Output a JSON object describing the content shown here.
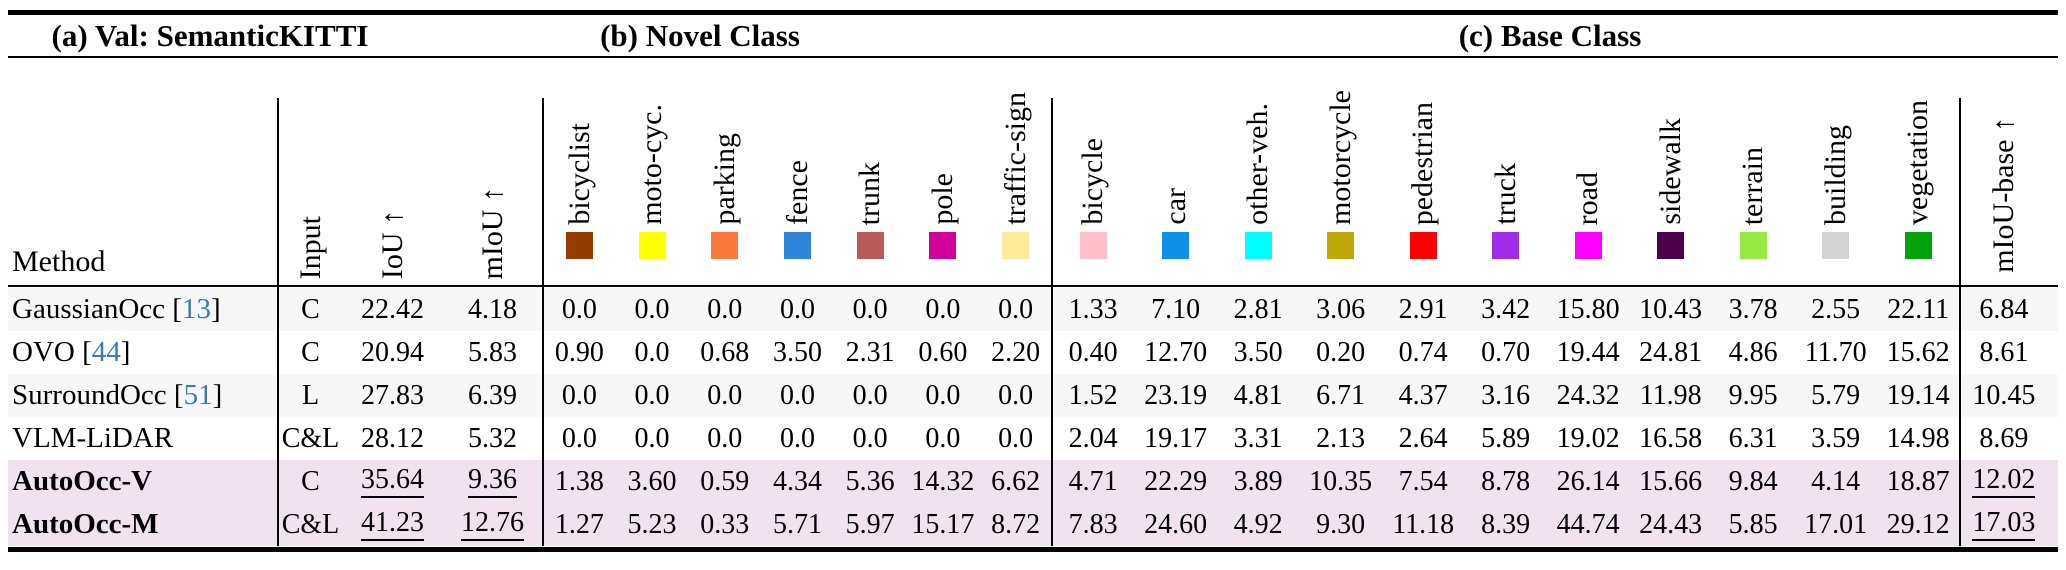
{
  "sections": {
    "a": "(a) Val: SemanticKITTI",
    "b": "(b) Novel Class",
    "c": "(c) Base Class"
  },
  "header": {
    "method": "Method",
    "input": "Input",
    "iou": "IoU ↑",
    "miou": "mIoU ↑",
    "miou_base": "mIoU-base ↑"
  },
  "classes": {
    "novel": [
      {
        "label": "bicyclist",
        "color": "#963C00"
      },
      {
        "label": "moto-cyc.",
        "color": "#FFFF00"
      },
      {
        "label": "parking",
        "color": "#FA7A3C"
      },
      {
        "label": "fence",
        "color": "#2F86D9"
      },
      {
        "label": "trunk",
        "color": "#B95A5B"
      },
      {
        "label": "pole",
        "color": "#D1009B"
      },
      {
        "label": "traffic-sign",
        "color": "#FFEC9C"
      }
    ],
    "base": [
      {
        "label": "bicycle",
        "color": "#FFC0CB"
      },
      {
        "label": "car",
        "color": "#0E90E6"
      },
      {
        "label": "other-veh.",
        "color": "#00FFFF"
      },
      {
        "label": "motorcycle",
        "color": "#C0A806"
      },
      {
        "label": "pedestrian",
        "color": "#FF0000"
      },
      {
        "label": "truck",
        "color": "#A02BE8"
      },
      {
        "label": "road",
        "color": "#FF00FF"
      },
      {
        "label": "sidewalk",
        "color": "#4B0049"
      },
      {
        "label": "terrain",
        "color": "#96E842"
      },
      {
        "label": "building",
        "color": "#D3D3D3"
      },
      {
        "label": "vegetation",
        "color": "#00A30A"
      }
    ]
  },
  "rows": [
    {
      "method": "GaussianOcc",
      "cite": "13",
      "bold": false,
      "bg": "#F7F7F7",
      "input": "C",
      "iou": "22.42",
      "miou": "4.18",
      "u_iou": false,
      "u_miou": false,
      "novel": [
        "0.0",
        "0.0",
        "0.0",
        "0.0",
        "0.0",
        "0.0",
        "0.0"
      ],
      "base": [
        "1.33",
        "7.10",
        "2.81",
        "3.06",
        "2.91",
        "3.42",
        "15.80",
        "10.43",
        "3.78",
        "2.55",
        "22.11"
      ],
      "miou_base": "6.84",
      "u_miou_base": false
    },
    {
      "method": "OVO",
      "cite": "44",
      "bold": false,
      "bg": "#FFFFFF",
      "input": "C",
      "iou": "20.94",
      "miou": "5.83",
      "u_iou": false,
      "u_miou": false,
      "novel": [
        "0.90",
        "0.0",
        "0.68",
        "3.50",
        "2.31",
        "0.60",
        "2.20"
      ],
      "base": [
        "0.40",
        "12.70",
        "3.50",
        "0.20",
        "0.74",
        "0.70",
        "19.44",
        "24.81",
        "4.86",
        "11.70",
        "15.62"
      ],
      "miou_base": "8.61",
      "u_miou_base": false
    },
    {
      "method": "SurroundOcc",
      "cite": "51",
      "bold": false,
      "bg": "#F7F7F7",
      "input": "L",
      "iou": "27.83",
      "miou": "6.39",
      "u_iou": false,
      "u_miou": false,
      "novel": [
        "0.0",
        "0.0",
        "0.0",
        "0.0",
        "0.0",
        "0.0",
        "0.0"
      ],
      "base": [
        "1.52",
        "23.19",
        "4.81",
        "6.71",
        "4.37",
        "3.16",
        "24.32",
        "11.98",
        "9.95",
        "5.79",
        "19.14"
      ],
      "miou_base": "10.45",
      "u_miou_base": false
    },
    {
      "method": "VLM-LiDAR",
      "cite": "",
      "bold": false,
      "bg": "#FFFFFF",
      "input": "C&L",
      "iou": "28.12",
      "miou": "5.32",
      "u_iou": false,
      "u_miou": false,
      "novel": [
        "0.0",
        "0.0",
        "0.0",
        "0.0",
        "0.0",
        "0.0",
        "0.0"
      ],
      "base": [
        "2.04",
        "19.17",
        "3.31",
        "2.13",
        "2.64",
        "5.89",
        "19.02",
        "16.58",
        "6.31",
        "3.59",
        "14.98"
      ],
      "miou_base": "8.69",
      "u_miou_base": false
    },
    {
      "method": "AutoOcc-V",
      "cite": "",
      "bold": true,
      "bg": "#F0E2EF",
      "input": "C",
      "iou": "35.64",
      "miou": "9.36",
      "u_iou": true,
      "u_miou": true,
      "novel": [
        "1.38",
        "3.60",
        "0.59",
        "4.34",
        "5.36",
        "14.32",
        "6.62"
      ],
      "base": [
        "4.71",
        "22.29",
        "3.89",
        "10.35",
        "7.54",
        "8.78",
        "26.14",
        "15.66",
        "9.84",
        "4.14",
        "18.87"
      ],
      "miou_base": "12.02",
      "u_miou_base": true
    },
    {
      "method": "AutoOcc-M",
      "cite": "",
      "bold": true,
      "bg": "#F0E2EF",
      "input": "C&L",
      "iou": "41.23",
      "miou": "12.76",
      "u_iou": true,
      "u_miou": true,
      "novel": [
        "1.27",
        "5.23",
        "0.33",
        "5.71",
        "5.97",
        "15.17",
        "8.72"
      ],
      "base": [
        "7.83",
        "24.60",
        "4.92",
        "9.30",
        "11.18",
        "8.39",
        "44.74",
        "24.43",
        "5.85",
        "17.01",
        "29.12"
      ],
      "miou_base": "17.03",
      "u_miou_base": true
    }
  ],
  "colors": {
    "cite_link": "#3C78C0",
    "highlight_row": "#F0E2EF",
    "stripe_row": "#F7F7F7",
    "rule": "#000000"
  }
}
